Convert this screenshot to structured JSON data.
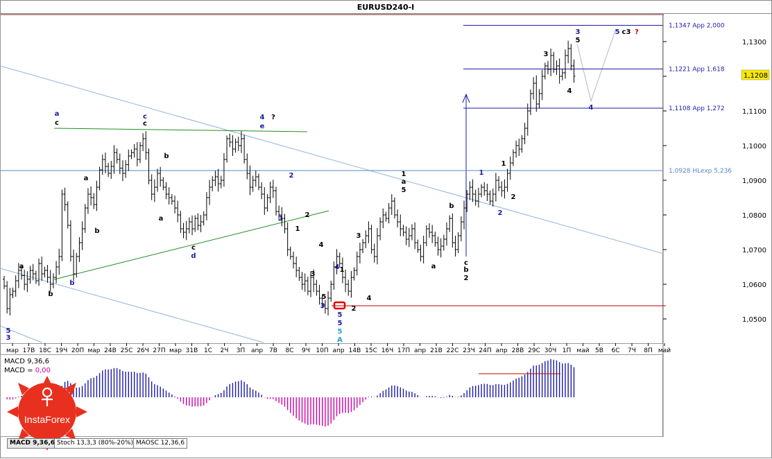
{
  "title": "EURUSD240-I",
  "price_scale": [
    "1,1300",
    "1,1200",
    "1,1100",
    "1,1000",
    "1,0900",
    "1,0800",
    "1,0700",
    "1,0600",
    "1,0500"
  ],
  "current_price": "1,1208",
  "time_labels": [
    "мар",
    "17В",
    "18С",
    "19Ч",
    "20П",
    "мар",
    "24В",
    "25С",
    "26Ч",
    "27П",
    "мар",
    "31В",
    "1С",
    "2Ч",
    "3П",
    "апр",
    "7В",
    "8С",
    "9Ч",
    "10П",
    "апр",
    "14В",
    "15С",
    "16Ч",
    "17П",
    "апр",
    "21В",
    "22С",
    "23Ч",
    "24П",
    "апр",
    "28В",
    "29С",
    "30Ч",
    "1П",
    "май",
    "5В",
    "6С",
    "7Ч",
    "8П",
    "май"
  ],
  "levels": [
    {
      "label": "1,1347 App 2,000",
      "price": 1.1347,
      "color": "#1a1aa8"
    },
    {
      "label": "1,1221 App 1,618",
      "price": 1.1221,
      "color": "#1a1aa8"
    },
    {
      "label": "1,1108 App 1,272",
      "price": 1.1108,
      "color": "#1a1aa8"
    },
    {
      "label": "1,0928 HLexp 5,236",
      "price": 1.0928,
      "color": "#5a86c2"
    }
  ],
  "colors": {
    "support": "#c00000",
    "trend": "#228b22",
    "channel": "#8fb4dc",
    "bull": "#000000",
    "histo_pos": "#1a1aa8",
    "histo_neg": "#cc00aa"
  },
  "macd": {
    "label1": "MACD 9,36,6",
    "label2_prefix": "MACD = ",
    "label2_value": "0,00"
  },
  "tabs": [
    "MACD 9,36,6",
    "Stoch 13,3,3 (80%-20%)",
    "MAOSC 12,36,6"
  ],
  "logo_text": "InstaForex",
  "wave_labels": [
    {
      "t": "a",
      "x": 82,
      "y": 167,
      "c": "#1a1aa8"
    },
    {
      "t": "c",
      "x": 82,
      "y": 180,
      "c": "#000"
    },
    {
      "t": "b",
      "x": 104,
      "y": 411,
      "c": "#1a1aa8"
    },
    {
      "t": "b",
      "x": 73,
      "y": 427,
      "c": "#000"
    },
    {
      "t": "a",
      "x": 31,
      "y": 387,
      "c": "#000"
    },
    {
      "t": "5",
      "x": 12,
      "y": 480,
      "c": "#1a1aa8"
    },
    {
      "t": "3",
      "x": 12,
      "y": 490,
      "c": "#1a1aa8"
    },
    {
      "t": "a",
      "x": 124,
      "y": 260,
      "c": "#000"
    },
    {
      "t": "b",
      "x": 140,
      "y": 336,
      "c": "#000"
    },
    {
      "t": "c",
      "x": 209,
      "y": 171,
      "c": "#1a1aa8"
    },
    {
      "t": "c",
      "x": 209,
      "y": 181,
      "c": "#000"
    },
    {
      "t": "b",
      "x": 240,
      "y": 228,
      "c": "#000"
    },
    {
      "t": "a",
      "x": 232,
      "y": 318,
      "c": "#000"
    },
    {
      "t": "c",
      "x": 279,
      "y": 360,
      "c": "#000"
    },
    {
      "t": "d",
      "x": 279,
      "y": 372,
      "c": "#1a1aa8"
    },
    {
      "t": "4",
      "x": 378,
      "y": 172,
      "c": "#1a1aa8"
    },
    {
      "t": "e",
      "x": 378,
      "y": 185,
      "c": "#1a1aa8"
    },
    {
      "t": "?",
      "x": 394,
      "y": 172,
      "c": "#000"
    },
    {
      "t": "2",
      "x": 420,
      "y": 256,
      "c": "#1a1aa8"
    },
    {
      "t": "1",
      "x": 405,
      "y": 318,
      "c": "#1a1aa8"
    },
    {
      "t": "2",
      "x": 443,
      "y": 313,
      "c": "#000"
    },
    {
      "t": "1",
      "x": 429,
      "y": 333,
      "c": "#000"
    },
    {
      "t": "4",
      "x": 463,
      "y": 356,
      "c": "#000"
    },
    {
      "t": "3",
      "x": 451,
      "y": 398,
      "c": "#000"
    },
    {
      "t": "4",
      "x": 486,
      "y": 388,
      "c": "#1a1aa8"
    },
    {
      "t": "1",
      "x": 493,
      "y": 392,
      "c": "#000"
    },
    {
      "t": "5",
      "x": 467,
      "y": 431,
      "c": "#000"
    },
    {
      "t": "3",
      "x": 465,
      "y": 444,
      "c": "#1a1aa8"
    },
    {
      "t": "2",
      "x": 510,
      "y": 448,
      "c": "#000"
    },
    {
      "t": "5",
      "x": 490,
      "y": 457,
      "c": "#1a1aa8"
    },
    {
      "t": "5",
      "x": 490,
      "y": 469,
      "c": "#1a1aa8"
    },
    {
      "t": "5",
      "x": 490,
      "y": 481,
      "c": "#2aa0c8"
    },
    {
      "t": "A",
      "x": 490,
      "y": 493,
      "c": "#2aa0c8"
    },
    {
      "t": "3",
      "x": 517,
      "y": 343,
      "c": "#000"
    },
    {
      "t": "4",
      "x": 532,
      "y": 433,
      "c": "#000"
    },
    {
      "t": "1",
      "x": 582,
      "y": 254,
      "c": "#000"
    },
    {
      "t": "a",
      "x": 582,
      "y": 265,
      "c": "#000"
    },
    {
      "t": "5",
      "x": 582,
      "y": 277,
      "c": "#000"
    },
    {
      "t": "a",
      "x": 625,
      "y": 387,
      "c": "#000"
    },
    {
      "t": "b",
      "x": 651,
      "y": 300,
      "c": "#000"
    },
    {
      "t": "c",
      "x": 672,
      "y": 382,
      "c": "#000"
    },
    {
      "t": "b",
      "x": 672,
      "y": 392,
      "c": "#000"
    },
    {
      "t": "2",
      "x": 672,
      "y": 404,
      "c": "#000"
    },
    {
      "t": "1",
      "x": 694,
      "y": 252,
      "c": "#1a1aa8"
    },
    {
      "t": "2",
      "x": 721,
      "y": 310,
      "c": "#1a1aa8"
    },
    {
      "t": "1",
      "x": 726,
      "y": 239,
      "c": "#000"
    },
    {
      "t": "2",
      "x": 740,
      "y": 287,
      "c": "#000"
    },
    {
      "t": "3",
      "x": 787,
      "y": 81,
      "c": "#000"
    },
    {
      "t": "4",
      "x": 821,
      "y": 134,
      "c": "#000"
    },
    {
      "t": "3",
      "x": 833,
      "y": 49,
      "c": "#1a1aa8"
    },
    {
      "t": "5",
      "x": 833,
      "y": 61,
      "c": "#000"
    },
    {
      "t": "4",
      "x": 852,
      "y": 158,
      "c": "#1a1aa8"
    },
    {
      "t": "5",
      "x": 890,
      "y": 49,
      "c": "#1a1aa8"
    },
    {
      "t": "c3",
      "x": 903,
      "y": 49,
      "c": "#000"
    },
    {
      "t": "?",
      "x": 918,
      "y": 49,
      "c": "#c00000"
    }
  ],
  "chart_data": {
    "type": "candlestick",
    "symbol": "EURUSD",
    "timeframe": "H4",
    "title": "EURUSD240-I",
    "ylim": [
      1.043,
      1.138
    ],
    "close": [
      1.0595,
      1.053,
      1.057,
      1.058,
      1.061,
      1.064,
      1.0625,
      1.06,
      1.0615,
      1.064,
      1.063,
      1.061,
      1.066,
      1.063,
      1.064,
      1.062,
      1.06,
      1.062,
      1.065,
      1.068,
      1.086,
      1.083,
      1.077,
      1.068,
      1.063,
      1.068,
      1.072,
      1.076,
      1.082,
      1.086,
      1.085,
      1.083,
      1.088,
      1.093,
      1.096,
      1.094,
      1.092,
      1.094,
      1.098,
      1.096,
      1.0935,
      1.092,
      1.0945,
      1.097,
      1.098,
      1.099,
      1.096,
      1.1,
      1.102,
      1.098,
      1.09,
      1.086,
      1.088,
      1.092,
      1.09,
      1.088,
      1.086,
      1.085,
      1.084,
      1.082,
      1.08,
      1.076,
      1.075,
      1.076,
      1.078,
      1.076,
      1.079,
      1.077,
      1.078,
      1.08,
      1.085,
      1.088,
      1.09,
      1.091,
      1.089,
      1.09,
      1.096,
      1.102,
      1.101,
      1.099,
      1.101,
      1.1,
      1.102,
      1.096,
      1.092,
      1.088,
      1.09,
      1.091,
      1.088,
      1.086,
      1.082,
      1.085,
      1.088,
      1.087,
      1.081,
      1.08,
      1.079,
      1.076,
      1.07,
      1.068,
      1.066,
      1.064,
      1.062,
      1.06,
      1.061,
      1.058,
      1.062,
      1.06,
      1.058,
      1.056,
      1.054,
      1.053,
      1.056,
      1.06,
      1.065,
      1.068,
      1.066,
      1.062,
      1.06,
      1.058,
      1.062,
      1.064,
      1.068,
      1.07,
      1.072,
      1.074,
      1.076,
      1.07,
      1.068,
      1.074,
      1.078,
      1.08,
      1.079,
      1.082,
      1.084,
      1.08,
      1.078,
      1.076,
      1.075,
      1.073,
      1.074,
      1.076,
      1.072,
      1.07,
      1.068,
      1.072,
      1.076,
      1.075,
      1.074,
      1.072,
      1.07,
      1.071,
      1.073,
      1.076,
      1.079,
      1.072,
      1.07,
      1.074,
      1.078,
      1.082,
      1.086,
      1.088,
      1.086,
      1.084,
      1.086,
      1.088,
      1.087,
      1.086,
      1.084,
      1.086,
      1.09,
      1.088,
      1.087,
      1.088,
      1.092,
      1.095,
      1.098,
      1.1,
      1.099,
      1.102,
      1.105,
      1.11,
      1.115,
      1.118,
      1.112,
      1.115,
      1.12,
      1.123,
      1.122,
      1.126,
      1.122,
      1.123,
      1.12,
      1.121,
      1.126,
      1.128,
      1.123,
      1.12
    ]
  }
}
